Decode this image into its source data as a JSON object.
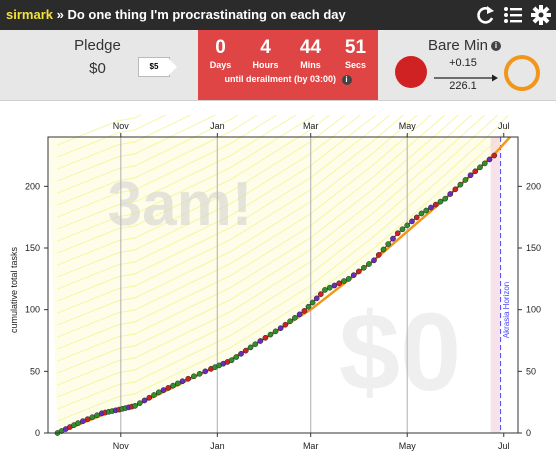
{
  "topbar": {
    "username": "sirmark",
    "separator": " » ",
    "goal_title": "Do one thing I'm procrastinating on each day",
    "icons": [
      "refresh-icon",
      "list-icon",
      "gear-icon"
    ]
  },
  "pledge": {
    "label": "Pledge",
    "amount": "$0",
    "next_tag": "$5"
  },
  "countdown": {
    "units": [
      {
        "value": "0",
        "label": "Days"
      },
      {
        "value": "4",
        "label": "Hours"
      },
      {
        "value": "44",
        "label": "Mins"
      },
      {
        "value": "51",
        "label": "Secs"
      }
    ],
    "subtitle": "until derailment (by 03:00)",
    "color": "#e04545"
  },
  "baremin": {
    "title": "Bare Min",
    "delta": "+0.15",
    "total": "226.1",
    "status_color": "#d02222",
    "ring_color": "#f2951b"
  },
  "chart_data": {
    "type": "line",
    "ylabel": "cumulative total tasks",
    "xlabel": "",
    "x_ticks": [
      "Nov",
      "Jan",
      "Mar",
      "May",
      "Jul"
    ],
    "ylim": [
      0,
      240
    ],
    "y_ticks": [
      0,
      50,
      100,
      150,
      200
    ],
    "watermark_time": "3am!",
    "watermark_pledge": "$0",
    "horizon_label": "Akrasia Horizon",
    "colors": {
      "bright_road": "#f2951b",
      "lane": "#f5f59a",
      "data_green": "#2f8f2f",
      "data_purple": "#6a2bbf",
      "data_red": "#c22",
      "horizon": "#4a4aff"
    },
    "x": [
      "Sep 22",
      "Oct 5",
      "Oct 20",
      "Oct 31",
      "Nov 10",
      "Nov 25",
      "Dec 10",
      "Dec 28",
      "Jan 10",
      "Jan 25",
      "Feb 10",
      "Feb 25",
      "Mar 10",
      "Mar 25",
      "Apr 10",
      "Apr 25",
      "May 10",
      "May 25",
      "Jun 10",
      "Jun 25"
    ],
    "series": [
      {
        "values": [
          0,
          8,
          16,
          19,
          22,
          33,
          42,
          52,
          59,
          72,
          85,
          99,
          116,
          125,
          140,
          162,
          178,
          190,
          209,
          225
        ]
      }
    ],
    "road": {
      "x": [
        "Sep 22",
        "Oct 31",
        "Nov 1",
        "Nov 10",
        "Dec 25",
        "Jan 10",
        "Mar 1",
        "Apr 10",
        "May 25",
        "Jun 25",
        "Jul 5"
      ],
      "values": [
        0,
        20,
        20,
        22,
        50,
        60,
        100,
        140,
        190,
        226,
        240
      ]
    }
  }
}
